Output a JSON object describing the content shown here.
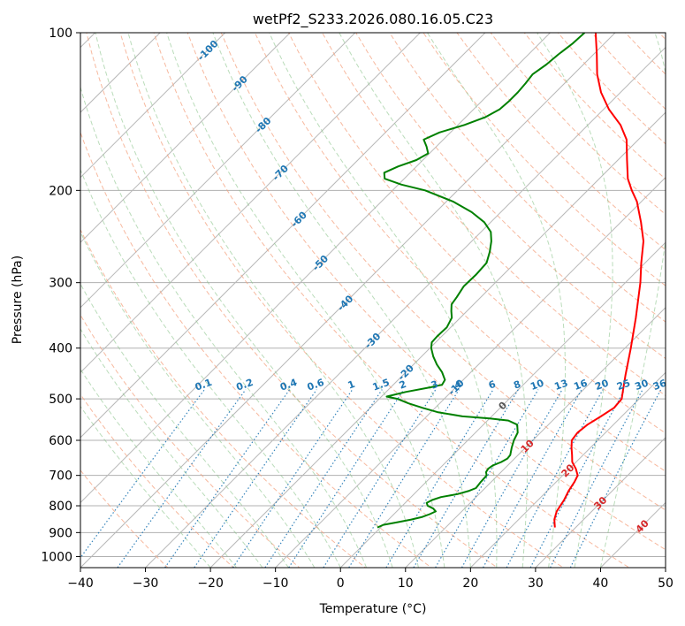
{
  "chart_data": {
    "type": "line",
    "title": "wetPf2_S233.2026.080.16.05.C23",
    "xlabel": "Temperature (°C)",
    "ylabel": "Pressure (hPa)",
    "xlim": [
      -40,
      50
    ],
    "ylim": [
      1050,
      100
    ],
    "y_scale": "log",
    "skew_deg": 45,
    "x_ticks": [
      -40,
      -30,
      -20,
      -10,
      0,
      10,
      20,
      30,
      40,
      50
    ],
    "y_ticks": [
      100,
      200,
      300,
      400,
      500,
      600,
      700,
      800,
      900,
      1000
    ],
    "grid": true,
    "series": [
      {
        "color": "#ff0000",
        "points": [
          [
            880,
            26.8
          ],
          [
            850,
            25.5
          ],
          [
            820,
            24.6
          ],
          [
            800,
            24.3
          ],
          [
            780,
            24.0
          ],
          [
            750,
            23.3
          ],
          [
            720,
            22.8
          ],
          [
            700,
            22.3
          ],
          [
            680,
            21.0
          ],
          [
            660,
            19.4
          ],
          [
            640,
            18.3
          ],
          [
            620,
            17.1
          ],
          [
            600,
            16.0
          ],
          [
            580,
            15.7
          ],
          [
            560,
            16.0
          ],
          [
            540,
            16.8
          ],
          [
            520,
            17.5
          ],
          [
            500,
            17.3
          ],
          [
            480,
            16.1
          ],
          [
            450,
            14.2
          ],
          [
            400,
            10.9
          ],
          [
            350,
            7.0
          ],
          [
            300,
            2.3
          ],
          [
            275,
            -0.6
          ],
          [
            250,
            -3.6
          ],
          [
            230,
            -6.9
          ],
          [
            210,
            -10.7
          ],
          [
            200,
            -13.2
          ],
          [
            190,
            -15.6
          ],
          [
            175,
            -18.6
          ],
          [
            160,
            -21.8
          ],
          [
            150,
            -25.0
          ],
          [
            140,
            -29.2
          ],
          [
            130,
            -33.0
          ],
          [
            120,
            -36.4
          ],
          [
            110,
            -39.5
          ],
          [
            100,
            -43.0
          ]
        ]
      },
      {
        "color": "#008000",
        "points": [
          [
            880,
            -0.5
          ],
          [
            870,
            0.0
          ],
          [
            860,
            1.8
          ],
          [
            850,
            3.5
          ],
          [
            840,
            4.8
          ],
          [
            830,
            5.5
          ],
          [
            820,
            6.0
          ],
          [
            810,
            5.2
          ],
          [
            800,
            3.9
          ],
          [
            790,
            3.3
          ],
          [
            780,
            3.7
          ],
          [
            770,
            4.6
          ],
          [
            760,
            6.7
          ],
          [
            750,
            7.9
          ],
          [
            740,
            8.6
          ],
          [
            720,
            8.4
          ],
          [
            700,
            8.3
          ],
          [
            690,
            7.7
          ],
          [
            680,
            7.5
          ],
          [
            670,
            7.7
          ],
          [
            660,
            8.5
          ],
          [
            650,
            8.9
          ],
          [
            640,
            8.8
          ],
          [
            620,
            7.9
          ],
          [
            600,
            7.1
          ],
          [
            580,
            6.5
          ],
          [
            560,
            5.2
          ],
          [
            550,
            3.2
          ],
          [
            545,
            0.0
          ],
          [
            540,
            -4.5
          ],
          [
            530,
            -9.0
          ],
          [
            520,
            -12.0
          ],
          [
            510,
            -14.8
          ],
          [
            500,
            -17.2
          ],
          [
            495,
            -19.2
          ],
          [
            485,
            -17.0
          ],
          [
            475,
            -13.8
          ],
          [
            470,
            -12.5
          ],
          [
            460,
            -12.8
          ],
          [
            445,
            -14.4
          ],
          [
            430,
            -16.4
          ],
          [
            415,
            -18.2
          ],
          [
            400,
            -19.8
          ],
          [
            390,
            -20.6
          ],
          [
            380,
            -20.7
          ],
          [
            365,
            -20.6
          ],
          [
            350,
            -21.3
          ],
          [
            340,
            -22.4
          ],
          [
            330,
            -23.4
          ],
          [
            320,
            -23.7
          ],
          [
            305,
            -24.3
          ],
          [
            290,
            -24.2
          ],
          [
            275,
            -24.4
          ],
          [
            262,
            -25.6
          ],
          [
            250,
            -27.0
          ],
          [
            240,
            -28.5
          ],
          [
            230,
            -31.0
          ],
          [
            220,
            -34.5
          ],
          [
            210,
            -39.0
          ],
          [
            200,
            -45.0
          ],
          [
            195,
            -49.5
          ],
          [
            190,
            -53.0
          ],
          [
            185,
            -54.0
          ],
          [
            180,
            -52.8
          ],
          [
            175,
            -51.0
          ],
          [
            170,
            -50.2
          ],
          [
            165,
            -51.5
          ],
          [
            160,
            -53.0
          ],
          [
            155,
            -51.7
          ],
          [
            150,
            -49.0
          ],
          [
            145,
            -47.0
          ],
          [
            140,
            -46.0
          ],
          [
            135,
            -45.8
          ],
          [
            130,
            -45.8
          ],
          [
            125,
            -46.0
          ],
          [
            120,
            -46.3
          ],
          [
            115,
            -45.7
          ],
          [
            110,
            -45.4
          ],
          [
            105,
            -44.9
          ],
          [
            100,
            -44.7
          ]
        ]
      }
    ],
    "isotherm_labels": [
      "-100",
      "-90",
      "-80",
      "-70",
      "-60",
      "-50",
      "-40",
      "-30",
      "-20",
      "-10",
      "0",
      "10",
      "20",
      "30",
      "40"
    ],
    "mixing_ratio_labels": [
      "0.1",
      "0.2",
      "0.4",
      "0.6",
      "1",
      "1.5",
      "2",
      "3",
      "4",
      "6",
      "8",
      "10",
      "13",
      "16",
      "20",
      "25",
      "30",
      "36"
    ]
  },
  "colors": {
    "temperature": "#ff0000",
    "dewpoint": "#008000",
    "dry_adiabat": "#f4a27f",
    "moist_adiabat": "#8cc48c",
    "mixing_ratio": "#1f77b4",
    "label_cold": "#1f77b4",
    "label_warm": "#d62728",
    "label_zero": "#555555"
  }
}
